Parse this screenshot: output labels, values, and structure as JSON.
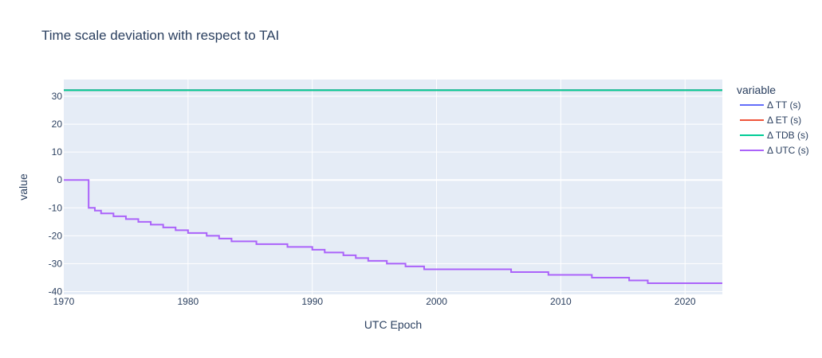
{
  "chart_data": {
    "type": "line",
    "title": "Time scale deviation with respect to TAI",
    "xlabel": "UTC Epoch",
    "ylabel": "value",
    "xlim": [
      1970,
      2023
    ],
    "ylim": [
      -41,
      36
    ],
    "x_ticks": [
      1970,
      1980,
      1990,
      2000,
      2010,
      2020
    ],
    "y_ticks": [
      -40,
      -30,
      -20,
      -10,
      0,
      10,
      20,
      30
    ],
    "grid": true,
    "legend_title": "variable",
    "legend_position": "right",
    "series": [
      {
        "name": "Δ TT (s)",
        "color": "#636efa",
        "x": [
          1970,
          2023
        ],
        "y": [
          32.184,
          32.184
        ],
        "step": false
      },
      {
        "name": "Δ ET (s)",
        "color": "#ef553b",
        "x": [
          1970,
          2023
        ],
        "y": [
          32.184,
          32.184
        ],
        "step": false
      },
      {
        "name": "Δ TDB (s)",
        "color": "#00cc96",
        "x": [
          1970,
          2023
        ],
        "y": [
          32.184,
          32.184
        ],
        "step": false
      },
      {
        "name": "Δ UTC (s)",
        "color": "#ab63fa",
        "step": true,
        "x": [
          1970,
          1972.0,
          1972.5,
          1973.0,
          1974.0,
          1975.0,
          1976.0,
          1977.0,
          1978.0,
          1979.0,
          1980.0,
          1981.5,
          1982.5,
          1983.5,
          1985.5,
          1988.0,
          1990.0,
          1991.0,
          1992.5,
          1993.5,
          1994.5,
          1996.0,
          1997.5,
          1999.0,
          2006.0,
          2009.0,
          2012.5,
          2015.5,
          2017.0,
          2023
        ],
        "y": [
          0,
          -10,
          -11,
          -12,
          -13,
          -14,
          -15,
          -16,
          -17,
          -18,
          -19,
          -20,
          -21,
          -22,
          -23,
          -24,
          -25,
          -26,
          -27,
          -28,
          -29,
          -30,
          -31,
          -32,
          -33,
          -34,
          -35,
          -36,
          -37,
          -37
        ]
      }
    ]
  }
}
